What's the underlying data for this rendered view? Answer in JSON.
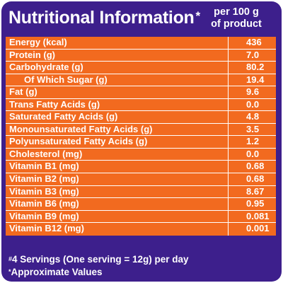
{
  "header": {
    "title": "Nutritional Information",
    "title_mark": "*",
    "per_line1": "per 100 g",
    "per_line2": "of product"
  },
  "rows": [
    {
      "name": "Energy (kcal)",
      "value": "436"
    },
    {
      "name": "Protein (g)",
      "value": "7.0"
    },
    {
      "name": "Carbohydrate (g)",
      "value": "80.2"
    },
    {
      "name": "Of Which Sugar (g)",
      "value": "19.4"
    },
    {
      "name": "Fat (g)",
      "value": "9.6"
    },
    {
      "name": "Trans Fatty Acids (g)",
      "value": "0.0"
    },
    {
      "name": "Saturated Fatty Acids (g)",
      "value": "4.8"
    },
    {
      "name": "Monounsaturated Fatty Acids (g)",
      "value": "3.5"
    },
    {
      "name": "Polyunsaturated Fatty Acids (g)",
      "value": "1.2"
    },
    {
      "name": "Cholesterol (mg)",
      "value": "0.0"
    },
    {
      "name": "Vitamin B1 (mg)",
      "value": "0.68"
    },
    {
      "name": "Vitamin B2 (mg)",
      "value": "0.68"
    },
    {
      "name": "Vitamin B3 (mg)",
      "value": "8.67"
    },
    {
      "name": "Vitamin B6 (mg)",
      "value": "0.95"
    },
    {
      "name": "Vitamin B9 (mg)",
      "value": "0.081"
    },
    {
      "name": "Vitamin B12 (mg)",
      "value": "0.001"
    }
  ],
  "footer": {
    "note1_mark": "#",
    "note1": "4 Servings (One serving = 12g) per day",
    "note2_mark": "*",
    "note2": "Approximate Values"
  },
  "colors": {
    "panel": "#3d1f8c",
    "table": "#f26a1f",
    "text": "#ffffff"
  }
}
